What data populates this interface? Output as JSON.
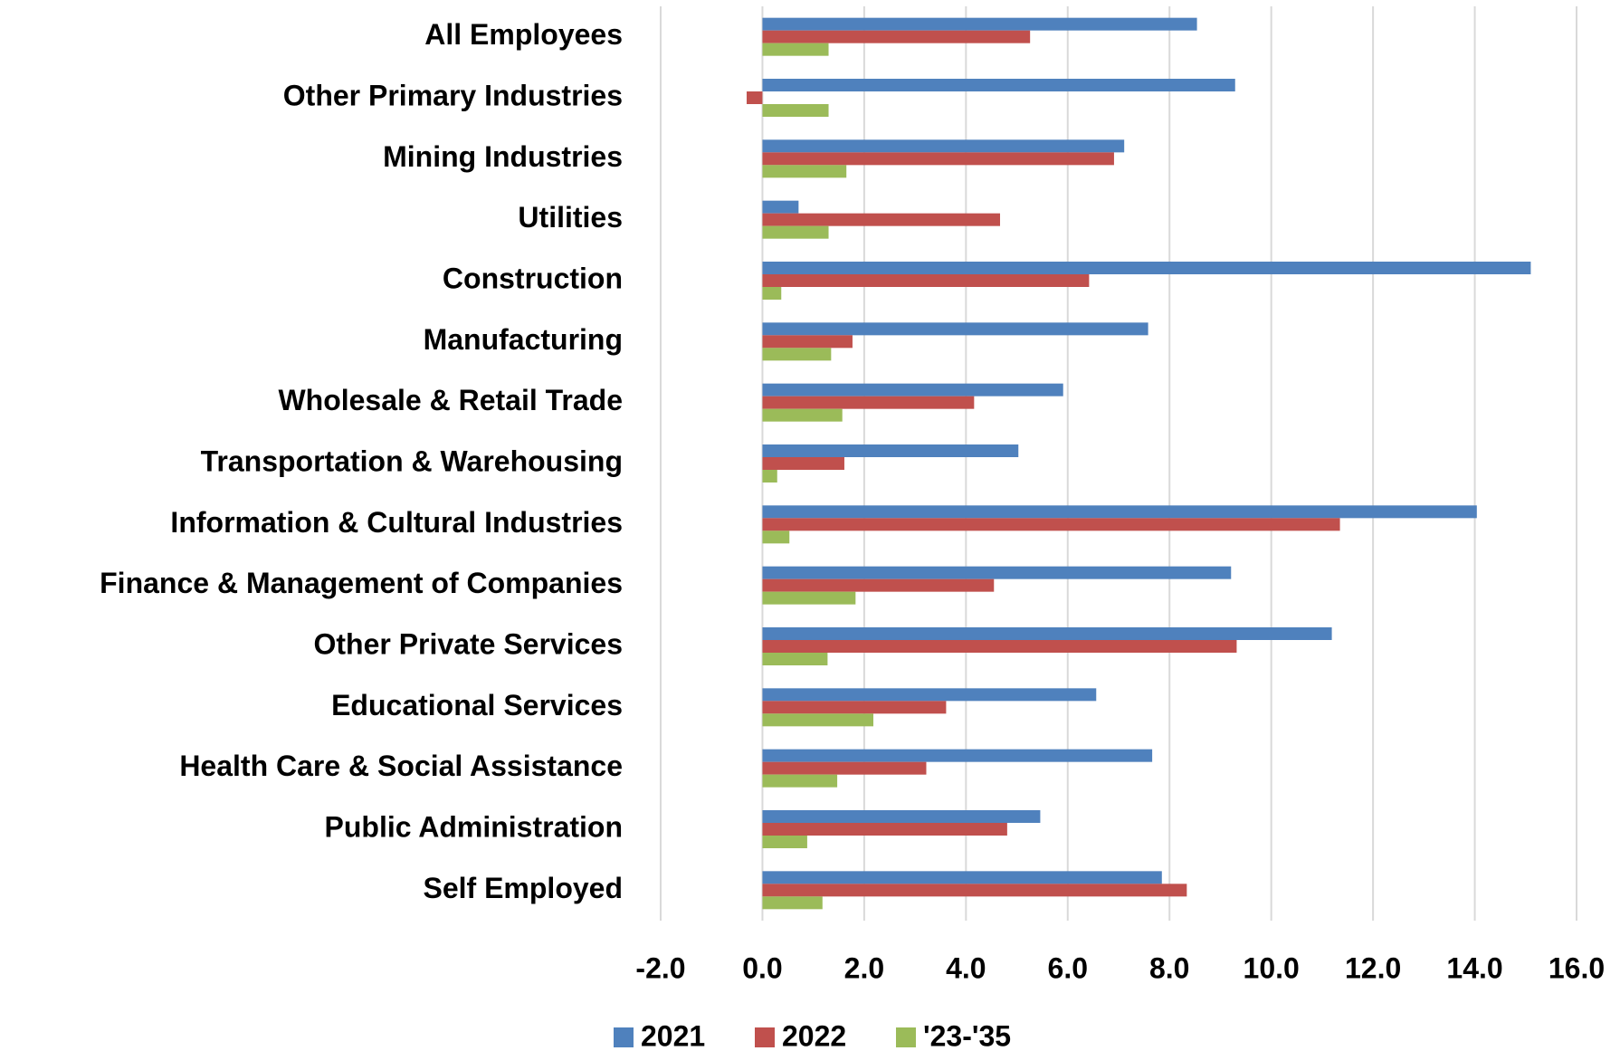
{
  "chart_data": {
    "type": "hbar",
    "categories": [
      "All Employees",
      "Other Primary Industries",
      "Mining Industries",
      "Utilities",
      "Construction",
      "Manufacturing",
      "Wholesale & Retail Trade",
      "Transportation & Warehousing",
      "Information & Cultural Industries",
      "Finance & Management of Companies",
      "Other Private Services",
      "Educational Services",
      "Health Care & Social Assistance",
      "Public Administration",
      "Self Employed"
    ],
    "series": [
      {
        "name": "2021",
        "color": "#4f81bd",
        "values": [
          8.54,
          9.29,
          7.11,
          0.71,
          15.1,
          7.58,
          5.91,
          5.03,
          14.04,
          9.21,
          11.19,
          6.56,
          7.66,
          5.46,
          7.85
        ]
      },
      {
        "name": "2022",
        "color": "#c0504d",
        "values": [
          5.26,
          -0.31,
          6.91,
          4.67,
          6.42,
          1.77,
          4.16,
          1.61,
          11.35,
          4.55,
          9.32,
          3.61,
          3.22,
          4.81,
          8.34
        ]
      },
      {
        "name": "'23-'35",
        "color": "#9bbb59",
        "values": [
          1.3,
          1.3,
          1.65,
          1.3,
          0.37,
          1.35,
          1.57,
          0.29,
          0.53,
          1.83,
          1.28,
          2.18,
          1.47,
          0.88,
          1.18
        ]
      }
    ],
    "xlim": [
      -2,
      16
    ],
    "xticks": [
      {
        "value": -2,
        "label": "-2.0"
      },
      {
        "value": 0,
        "label": "0.0"
      },
      {
        "value": 2,
        "label": "2.0"
      },
      {
        "value": 4,
        "label": "4.0"
      },
      {
        "value": 6,
        "label": "6.0"
      },
      {
        "value": 8,
        "label": "8.0"
      },
      {
        "value": 10,
        "label": "10.0"
      },
      {
        "value": 12,
        "label": "12.0"
      },
      {
        "value": 14,
        "label": "14.0"
      },
      {
        "value": 16,
        "label": "16.0"
      }
    ],
    "grid": true,
    "legend": "bottom"
  }
}
